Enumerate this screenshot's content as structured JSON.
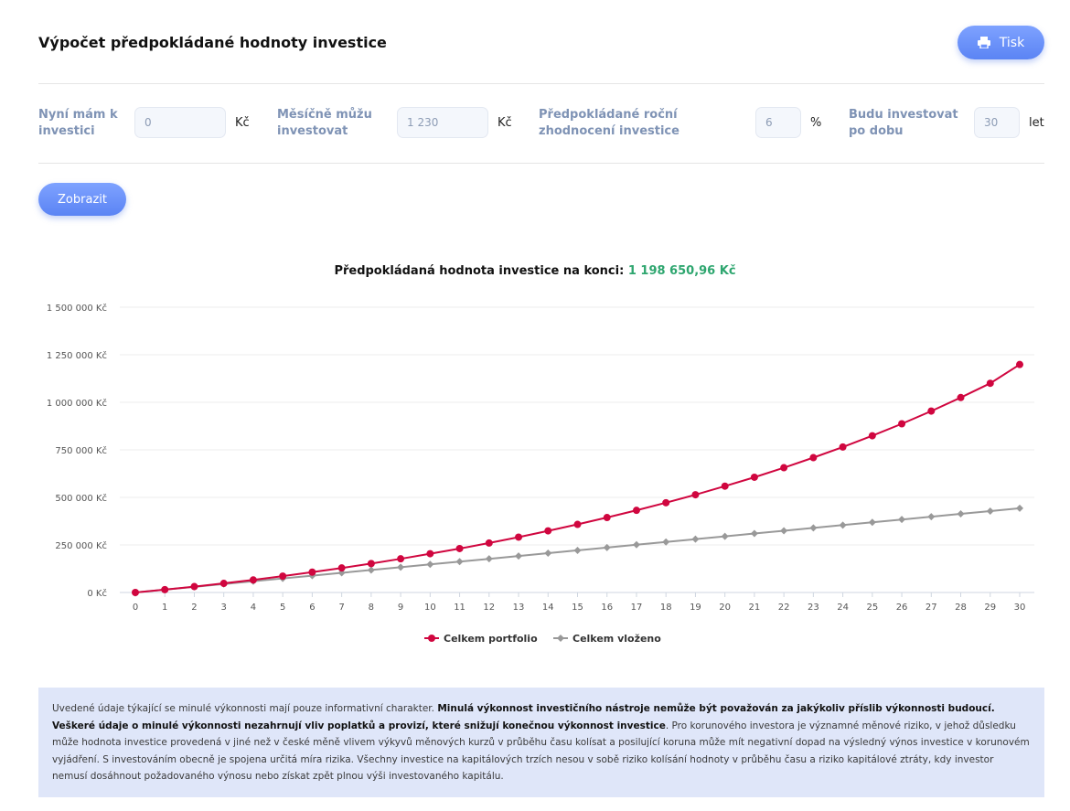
{
  "header": {
    "title": "Výpočet předpokládané hodnoty investice",
    "print_label": "Tisk"
  },
  "form": {
    "initial": {
      "label_line1": "Nyní mám k",
      "label_line2": "investici",
      "value": "0",
      "unit": "Kč"
    },
    "monthly": {
      "label_line1": "Měsíčně můžu",
      "label_line2": "investovat",
      "value": "1 230",
      "unit": "Kč"
    },
    "rate": {
      "label_line1": "Předpokládané roční",
      "label_line2": "zhodnocení investice",
      "value": "6",
      "unit": "%"
    },
    "years": {
      "label_line1": "Budu investovat",
      "label_line2": "po dobu",
      "value": "30",
      "unit": "let"
    },
    "show_label": "Zobrazit"
  },
  "result": {
    "label": "Předpokládaná hodnota investice na konci:",
    "value": "1 198 650,96 Kč"
  },
  "colors": {
    "portfolio": "#d0063f",
    "invested": "#999999",
    "accent": "#5b84f4",
    "result_value": "#2ea66f"
  },
  "chart_data": {
    "type": "line",
    "x": [
      0,
      1,
      2,
      3,
      4,
      5,
      6,
      7,
      8,
      9,
      10,
      11,
      12,
      13,
      14,
      15,
      16,
      17,
      18,
      19,
      20,
      21,
      22,
      23,
      24,
      25,
      26,
      27,
      28,
      29,
      30
    ],
    "y_ticks": [
      "0 Kč",
      "250 000 Kč",
      "500 000 Kč",
      "750 000 Kč",
      "1 000 000 Kč",
      "1 250 000 Kč",
      "1 500 000 Kč"
    ],
    "ylim": [
      0,
      1500000
    ],
    "grid": true,
    "legend_position": "bottom-center",
    "series": [
      {
        "name": "Celkem portfolio",
        "values": [
          0,
          15000,
          31000,
          48000,
          66000,
          86000,
          107000,
          129000,
          152000,
          177000,
          204000,
          231000,
          260000,
          291000,
          324000,
          358000,
          394000,
          432000,
          472000,
          514000,
          559000,
          606000,
          656000,
          709000,
          765000,
          824000,
          887000,
          954000,
          1025000,
          1100000,
          1198651
        ]
      },
      {
        "name": "Celkem vloženo",
        "values": [
          0,
          14760,
          29520,
          44280,
          59040,
          73800,
          88560,
          103320,
          118080,
          132840,
          147600,
          162360,
          177120,
          191880,
          206640,
          221400,
          236160,
          250920,
          265680,
          280440,
          295200,
          309960,
          324720,
          339480,
          354240,
          369000,
          383760,
          398520,
          413280,
          428040,
          442800
        ]
      }
    ]
  },
  "disclaimer": {
    "text1": "Uvedené údaje týkající se minulé výkonnosti mají pouze informativní charakter. ",
    "bold": "Minulá výkonnost investičního nástroje nemůže být považován za jakýkoliv příslib výkonnosti budoucí. Veškeré údaje o minulé výkonnosti nezahrnují vliv poplatků a provizí, které snižují konečnou výkonnost investice",
    "text2": ". Pro korunového investora je významné měnové riziko, v jehož důsledku může hodnota investice provedená v jiné než v české měně vlivem výkyvů měnových kurzů v průběhu času kolísat a posilující koruna může mít negativní dopad na výsledný výnos investice v korunovém vyjádření. S investováním obecně je spojena určitá míra rizika. Všechny investice na kapitálových trzích nesou v sobě riziko kolísání hodnoty v průběhu času a riziko kapitálové ztráty, kdy investor nemusí dosáhnout požadovaného výnosu nebo získat zpět plnou výši investovaného kapitálu."
  }
}
